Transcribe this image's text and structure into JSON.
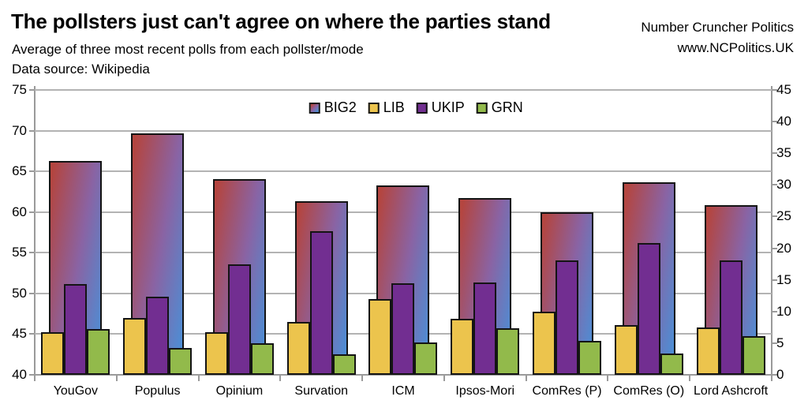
{
  "header": {
    "title": "The pollsters just can't agree on where the parties stand",
    "subtitle": "Average of three most recent polls from each pollster/mode",
    "data_source": "Data source: Wikipedia",
    "brand_name": "Number Cruncher Politics",
    "brand_url": "www.NCPolitics.UK"
  },
  "chart_data": {
    "type": "bar",
    "title": "The pollsters just can't agree on where the parties stand",
    "subtitle": "Average of three most recent polls from each pollster/mode",
    "categories": [
      "YouGov",
      "Populus",
      "Opinium",
      "Survation",
      "ICM",
      "Ipsos-Mori",
      "ComRes (P)",
      "ComRes (O)",
      "Lord Ashcroft"
    ],
    "series": [
      {
        "name": "BIG2",
        "axis": "left",
        "fill": "gradient",
        "values": [
          66.3,
          69.7,
          64.0,
          61.3,
          63.3,
          61.7,
          60.0,
          63.7,
          60.8
        ]
      },
      {
        "name": "LIB",
        "axis": "right",
        "fill": "#ecc44d",
        "values": [
          6.7,
          9.0,
          6.7,
          8.3,
          12.0,
          8.8,
          10.0,
          7.8,
          7.5
        ]
      },
      {
        "name": "UKIP",
        "axis": "right",
        "fill": "#722e91",
        "values": [
          14.3,
          12.4,
          17.4,
          22.7,
          14.4,
          14.6,
          18.1,
          20.8,
          18.1
        ]
      },
      {
        "name": "GRN",
        "axis": "right",
        "fill": "#92ba4b",
        "values": [
          7.2,
          4.2,
          5.0,
          3.3,
          5.1,
          7.3,
          5.4,
          3.4,
          6.1
        ]
      }
    ],
    "left_axis": {
      "min": 40,
      "max": 75,
      "step": 5,
      "ticks": [
        "75",
        "70",
        "65",
        "60",
        "55",
        "50",
        "45",
        "40"
      ]
    },
    "right_axis": {
      "min": 0,
      "max": 45,
      "step": 5,
      "ticks": [
        "45",
        "40",
        "35",
        "30",
        "25",
        "20",
        "15",
        "10",
        "5",
        "0"
      ]
    },
    "legend": {
      "position": "top-center",
      "entries": [
        "BIG2",
        "LIB",
        "UKIP",
        "GRN"
      ]
    },
    "grid": true,
    "colors": {
      "big2_gradient": [
        "#b4453f",
        "#8a63a3",
        "#4b8fd6"
      ],
      "lib": "#ecc44d",
      "ukip": "#722e91",
      "grn": "#92ba4b",
      "grid": "#b3b3b3",
      "axis": "#9a9a9a",
      "bar_border": "#141414"
    }
  }
}
